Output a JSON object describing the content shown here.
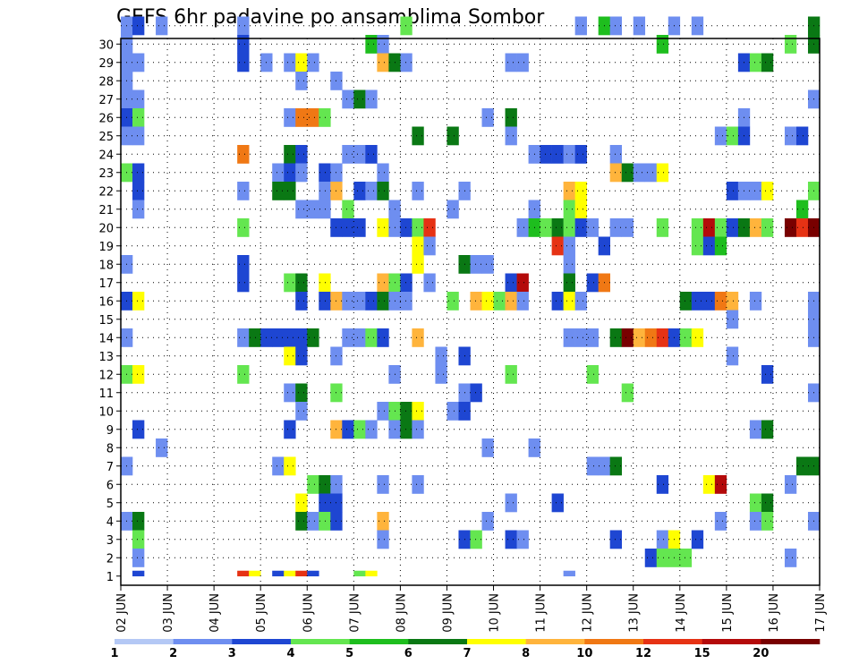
{
  "chart_data": {
    "type": "heatmap",
    "title": "GEFS 6hr padavine po ansamblima Sombor",
    "xlabel": "",
    "ylabel": "",
    "y_categories": [
      "1",
      "2",
      "3",
      "4",
      "5",
      "6",
      "7",
      "8",
      "9",
      "10",
      "11",
      "12",
      "13",
      "14",
      "15",
      "16",
      "17",
      "18",
      "19",
      "20",
      "21",
      "22",
      "23",
      "24",
      "25",
      "26",
      "27",
      "28",
      "29",
      "30"
    ],
    "x_tick_labels": [
      "02 JUN",
      "03 JUN",
      "04 JUN",
      "05 JUN",
      "06 JUN",
      "07 JUN",
      "08 JUN",
      "09 JUN",
      "10 JUN",
      "11 JUN",
      "12 JUN",
      "13 JUN",
      "14 JUN",
      "15 JUN",
      "16 JUN",
      "17 JUN"
    ],
    "x_range": [
      0,
      60
    ],
    "x_step_hours": 6,
    "grid": true,
    "colorbar": {
      "levels": [
        "1",
        "2",
        "3",
        "4",
        "5",
        "6",
        "7",
        "8",
        "10",
        "12",
        "15",
        "20"
      ],
      "colors": [
        "#b4c8f5",
        "#6e8ef0",
        "#1e46d2",
        "#64e650",
        "#1ebe1e",
        "#0a7814",
        "#ffff00",
        "#ffb43c",
        "#f07814",
        "#e63214",
        "#b40a0a",
        "#780000"
      ],
      "placement": "bottom"
    },
    "cells": [
      [
        0,
        30,
        1
      ],
      [
        1,
        30,
        2
      ],
      [
        3,
        30,
        1
      ],
      [
        10,
        30,
        1
      ],
      [
        24,
        30,
        3
      ],
      [
        39,
        30,
        1
      ],
      [
        41,
        30,
        4
      ],
      [
        42,
        30,
        1
      ],
      [
        44,
        30,
        1
      ],
      [
        47,
        30,
        1
      ],
      [
        49,
        30,
        1
      ],
      [
        59,
        30,
        5
      ],
      [
        0,
        29,
        1
      ],
      [
        10,
        29,
        2
      ],
      [
        21,
        29,
        4
      ],
      [
        22,
        29,
        1
      ],
      [
        46,
        29,
        4
      ],
      [
        57,
        29,
        3
      ],
      [
        59,
        29,
        5
      ],
      [
        0,
        28,
        1
      ],
      [
        1,
        28,
        1
      ],
      [
        10,
        28,
        2
      ],
      [
        12,
        28,
        1
      ],
      [
        14,
        28,
        1
      ],
      [
        15,
        28,
        6
      ],
      [
        16,
        28,
        1
      ],
      [
        22,
        28,
        7
      ],
      [
        23,
        28,
        5
      ],
      [
        24,
        28,
        1
      ],
      [
        33,
        28,
        1
      ],
      [
        34,
        28,
        1
      ],
      [
        53,
        28,
        2
      ],
      [
        54,
        28,
        3
      ],
      [
        55,
        28,
        5
      ],
      [
        0,
        27,
        1
      ],
      [
        15,
        27,
        1
      ],
      [
        18,
        27,
        1
      ],
      [
        0,
        26,
        1
      ],
      [
        1,
        26,
        1
      ],
      [
        19,
        26,
        1
      ],
      [
        20,
        26,
        5
      ],
      [
        21,
        26,
        1
      ],
      [
        59,
        26,
        1
      ],
      [
        0,
        25,
        2
      ],
      [
        1,
        25,
        3
      ],
      [
        14,
        25,
        1
      ],
      [
        15,
        25,
        8
      ],
      [
        16,
        25,
        8
      ],
      [
        17,
        25,
        3
      ],
      [
        31,
        25,
        1
      ],
      [
        33,
        25,
        5
      ],
      [
        53,
        25,
        1
      ],
      [
        0,
        24,
        1
      ],
      [
        1,
        24,
        1
      ],
      [
        25,
        24,
        5
      ],
      [
        28,
        24,
        5
      ],
      [
        33,
        24,
        1
      ],
      [
        51,
        24,
        1
      ],
      [
        52,
        24,
        3
      ],
      [
        53,
        24,
        2
      ],
      [
        57,
        24,
        1
      ],
      [
        58,
        24,
        2
      ],
      [
        10,
        23,
        8
      ],
      [
        14,
        23,
        5
      ],
      [
        15,
        23,
        2
      ],
      [
        19,
        23,
        1
      ],
      [
        20,
        23,
        1
      ],
      [
        21,
        23,
        2
      ],
      [
        35,
        23,
        1
      ],
      [
        36,
        23,
        2
      ],
      [
        37,
        23,
        2
      ],
      [
        38,
        23,
        1
      ],
      [
        39,
        23,
        2
      ],
      [
        42,
        23,
        1
      ],
      [
        0,
        22,
        3
      ],
      [
        1,
        22,
        2
      ],
      [
        13,
        22,
        1
      ],
      [
        14,
        22,
        2
      ],
      [
        15,
        22,
        1
      ],
      [
        17,
        22,
        2
      ],
      [
        18,
        22,
        1
      ],
      [
        22,
        22,
        1
      ],
      [
        42,
        22,
        7
      ],
      [
        43,
        22,
        5
      ],
      [
        44,
        22,
        1
      ],
      [
        45,
        22,
        1
      ],
      [
        46,
        22,
        6
      ],
      [
        1,
        21,
        2
      ],
      [
        10,
        21,
        1
      ],
      [
        13,
        21,
        5
      ],
      [
        14,
        21,
        5
      ],
      [
        17,
        21,
        1
      ],
      [
        18,
        21,
        7
      ],
      [
        20,
        21,
        2
      ],
      [
        21,
        21,
        1
      ],
      [
        22,
        21,
        5
      ],
      [
        25,
        21,
        1
      ],
      [
        29,
        21,
        1
      ],
      [
        38,
        21,
        7
      ],
      [
        39,
        21,
        6
      ],
      [
        52,
        21,
        2
      ],
      [
        53,
        21,
        1
      ],
      [
        54,
        21,
        1
      ],
      [
        55,
        21,
        6
      ],
      [
        59,
        21,
        3
      ],
      [
        1,
        20,
        1
      ],
      [
        15,
        20,
        1
      ],
      [
        16,
        20,
        1
      ],
      [
        17,
        20,
        1
      ],
      [
        19,
        20,
        3
      ],
      [
        23,
        20,
        1
      ],
      [
        28,
        20,
        1
      ],
      [
        35,
        20,
        1
      ],
      [
        38,
        20,
        3
      ],
      [
        39,
        20,
        6
      ],
      [
        58,
        20,
        4
      ],
      [
        10,
        19,
        3
      ],
      [
        18,
        19,
        2
      ],
      [
        19,
        19,
        2
      ],
      [
        20,
        19,
        2
      ],
      [
        22,
        19,
        6
      ],
      [
        23,
        19,
        1
      ],
      [
        24,
        19,
        2
      ],
      [
        25,
        19,
        3
      ],
      [
        26,
        19,
        9
      ],
      [
        34,
        19,
        1
      ],
      [
        35,
        19,
        4
      ],
      [
        36,
        19,
        3
      ],
      [
        37,
        19,
        5
      ],
      [
        38,
        19,
        3
      ],
      [
        39,
        19,
        2
      ],
      [
        40,
        19,
        1
      ],
      [
        42,
        19,
        1
      ],
      [
        43,
        19,
        1
      ],
      [
        46,
        19,
        3
      ],
      [
        49,
        19,
        3
      ],
      [
        50,
        19,
        10
      ],
      [
        51,
        19,
        3
      ],
      [
        52,
        19,
        2
      ],
      [
        53,
        19,
        5
      ],
      [
        54,
        19,
        7
      ],
      [
        55,
        19,
        3
      ],
      [
        57,
        19,
        11
      ],
      [
        58,
        19,
        9
      ],
      [
        59,
        19,
        11
      ],
      [
        25,
        18,
        6
      ],
      [
        26,
        18,
        1
      ],
      [
        37,
        18,
        9
      ],
      [
        38,
        18,
        1
      ],
      [
        41,
        18,
        2
      ],
      [
        49,
        18,
        3
      ],
      [
        50,
        18,
        2
      ],
      [
        51,
        18,
        4
      ],
      [
        0,
        17,
        1
      ],
      [
        10,
        17,
        2
      ],
      [
        25,
        17,
        6
      ],
      [
        29,
        17,
        5
      ],
      [
        30,
        17,
        1
      ],
      [
        31,
        17,
        1
      ],
      [
        38,
        17,
        1
      ],
      [
        10,
        16,
        2
      ],
      [
        14,
        16,
        3
      ],
      [
        15,
        16,
        5
      ],
      [
        17,
        16,
        6
      ],
      [
        22,
        16,
        7
      ],
      [
        23,
        16,
        3
      ],
      [
        24,
        16,
        2
      ],
      [
        26,
        16,
        1
      ],
      [
        33,
        16,
        2
      ],
      [
        34,
        16,
        10
      ],
      [
        38,
        16,
        5
      ],
      [
        40,
        16,
        2
      ],
      [
        41,
        16,
        8
      ],
      [
        0,
        15,
        2
      ],
      [
        1,
        15,
        6
      ],
      [
        15,
        15,
        2
      ],
      [
        17,
        15,
        2
      ],
      [
        18,
        15,
        7
      ],
      [
        19,
        15,
        1
      ],
      [
        20,
        15,
        1
      ],
      [
        21,
        15,
        2
      ],
      [
        22,
        15,
        5
      ],
      [
        23,
        15,
        1
      ],
      [
        24,
        15,
        1
      ],
      [
        28,
        15,
        3
      ],
      [
        30,
        15,
        7
      ],
      [
        31,
        15,
        6
      ],
      [
        32,
        15,
        3
      ],
      [
        33,
        15,
        7
      ],
      [
        34,
        15,
        1
      ],
      [
        37,
        15,
        2
      ],
      [
        38,
        15,
        6
      ],
      [
        39,
        15,
        1
      ],
      [
        48,
        15,
        5
      ],
      [
        49,
        15,
        2
      ],
      [
        50,
        15,
        2
      ],
      [
        51,
        15,
        8
      ],
      [
        52,
        15,
        7
      ],
      [
        54,
        15,
        1
      ],
      [
        59,
        15,
        1
      ],
      [
        52,
        14,
        1
      ],
      [
        59,
        14,
        1
      ],
      [
        0,
        13,
        1
      ],
      [
        10,
        13,
        1
      ],
      [
        11,
        13,
        5
      ],
      [
        12,
        13,
        2
      ],
      [
        13,
        13,
        2
      ],
      [
        14,
        13,
        2
      ],
      [
        15,
        13,
        2
      ],
      [
        16,
        13,
        5
      ],
      [
        19,
        13,
        1
      ],
      [
        20,
        13,
        1
      ],
      [
        21,
        13,
        3
      ],
      [
        22,
        13,
        2
      ],
      [
        25,
        13,
        7
      ],
      [
        38,
        13,
        1
      ],
      [
        39,
        13,
        1
      ],
      [
        40,
        13,
        1
      ],
      [
        42,
        13,
        5
      ],
      [
        43,
        13,
        11
      ],
      [
        44,
        13,
        7
      ],
      [
        45,
        13,
        8
      ],
      [
        46,
        13,
        9
      ],
      [
        47,
        13,
        2
      ],
      [
        48,
        13,
        3
      ],
      [
        49,
        13,
        6
      ],
      [
        59,
        13,
        1
      ],
      [
        14,
        12,
        6
      ],
      [
        15,
        12,
        2
      ],
      [
        18,
        12,
        1
      ],
      [
        27,
        12,
        1
      ],
      [
        29,
        12,
        2
      ],
      [
        52,
        12,
        1
      ],
      [
        0,
        11,
        3
      ],
      [
        1,
        11,
        6
      ],
      [
        10,
        11,
        3
      ],
      [
        23,
        11,
        1
      ],
      [
        27,
        11,
        1
      ],
      [
        33,
        11,
        3
      ],
      [
        40,
        11,
        3
      ],
      [
        55,
        11,
        2
      ],
      [
        14,
        10,
        1
      ],
      [
        15,
        10,
        5
      ],
      [
        18,
        10,
        3
      ],
      [
        29,
        10,
        1
      ],
      [
        30,
        10,
        2
      ],
      [
        43,
        10,
        3
      ],
      [
        59,
        10,
        1
      ],
      [
        15,
        9,
        1
      ],
      [
        22,
        9,
        1
      ],
      [
        23,
        9,
        3
      ],
      [
        24,
        9,
        5
      ],
      [
        25,
        9,
        6
      ],
      [
        28,
        9,
        1
      ],
      [
        29,
        9,
        2
      ],
      [
        1,
        8,
        2
      ],
      [
        14,
        8,
        2
      ],
      [
        18,
        8,
        7
      ],
      [
        19,
        8,
        2
      ],
      [
        20,
        8,
        3
      ],
      [
        21,
        8,
        1
      ],
      [
        23,
        8,
        1
      ],
      [
        24,
        8,
        5
      ],
      [
        25,
        8,
        1
      ],
      [
        54,
        8,
        1
      ],
      [
        55,
        8,
        5
      ],
      [
        3,
        7,
        1
      ],
      [
        31,
        7,
        1
      ],
      [
        35,
        7,
        1
      ],
      [
        0,
        6,
        1
      ],
      [
        13,
        6,
        1
      ],
      [
        14,
        6,
        6
      ],
      [
        40,
        6,
        1
      ],
      [
        41,
        6,
        1
      ],
      [
        42,
        6,
        5
      ],
      [
        58,
        6,
        5
      ],
      [
        59,
        6,
        5
      ],
      [
        16,
        5,
        3
      ],
      [
        17,
        5,
        5
      ],
      [
        18,
        5,
        1
      ],
      [
        22,
        5,
        1
      ],
      [
        25,
        5,
        1
      ],
      [
        46,
        5,
        2
      ],
      [
        50,
        5,
        6
      ],
      [
        51,
        5,
        10
      ],
      [
        57,
        5,
        1
      ],
      [
        15,
        4,
        6
      ],
      [
        17,
        4,
        2
      ],
      [
        18,
        4,
        2
      ],
      [
        33,
        4,
        1
      ],
      [
        37,
        4,
        2
      ],
      [
        54,
        4,
        3
      ],
      [
        55,
        4,
        5
      ],
      [
        0,
        3,
        1
      ],
      [
        1,
        3,
        5
      ],
      [
        15,
        3,
        5
      ],
      [
        16,
        3,
        1
      ],
      [
        17,
        3,
        3
      ],
      [
        18,
        3,
        2
      ],
      [
        22,
        3,
        7
      ],
      [
        31,
        3,
        1
      ],
      [
        51,
        3,
        1
      ],
      [
        54,
        3,
        1
      ],
      [
        55,
        3,
        3
      ],
      [
        59,
        3,
        1
      ],
      [
        1,
        2,
        3
      ],
      [
        22,
        2,
        1
      ],
      [
        29,
        2,
        2
      ],
      [
        30,
        2,
        3
      ],
      [
        33,
        2,
        2
      ],
      [
        34,
        2,
        1
      ],
      [
        42,
        2,
        2
      ],
      [
        46,
        2,
        1
      ],
      [
        47,
        2,
        6
      ],
      [
        49,
        2,
        2
      ],
      [
        1,
        1,
        1
      ],
      [
        45,
        1,
        2
      ],
      [
        46,
        1,
        3
      ],
      [
        47,
        1,
        3
      ],
      [
        48,
        1,
        3
      ],
      [
        57,
        1,
        1
      ],
      [
        1,
        0,
        2
      ],
      [
        10,
        0,
        9
      ],
      [
        11,
        0,
        6
      ],
      [
        13,
        0,
        2
      ],
      [
        14,
        0,
        6
      ],
      [
        15,
        0,
        9
      ],
      [
        16,
        0,
        2
      ],
      [
        20,
        0,
        3
      ],
      [
        21,
        0,
        6
      ],
      [
        38,
        0,
        1
      ]
    ]
  }
}
